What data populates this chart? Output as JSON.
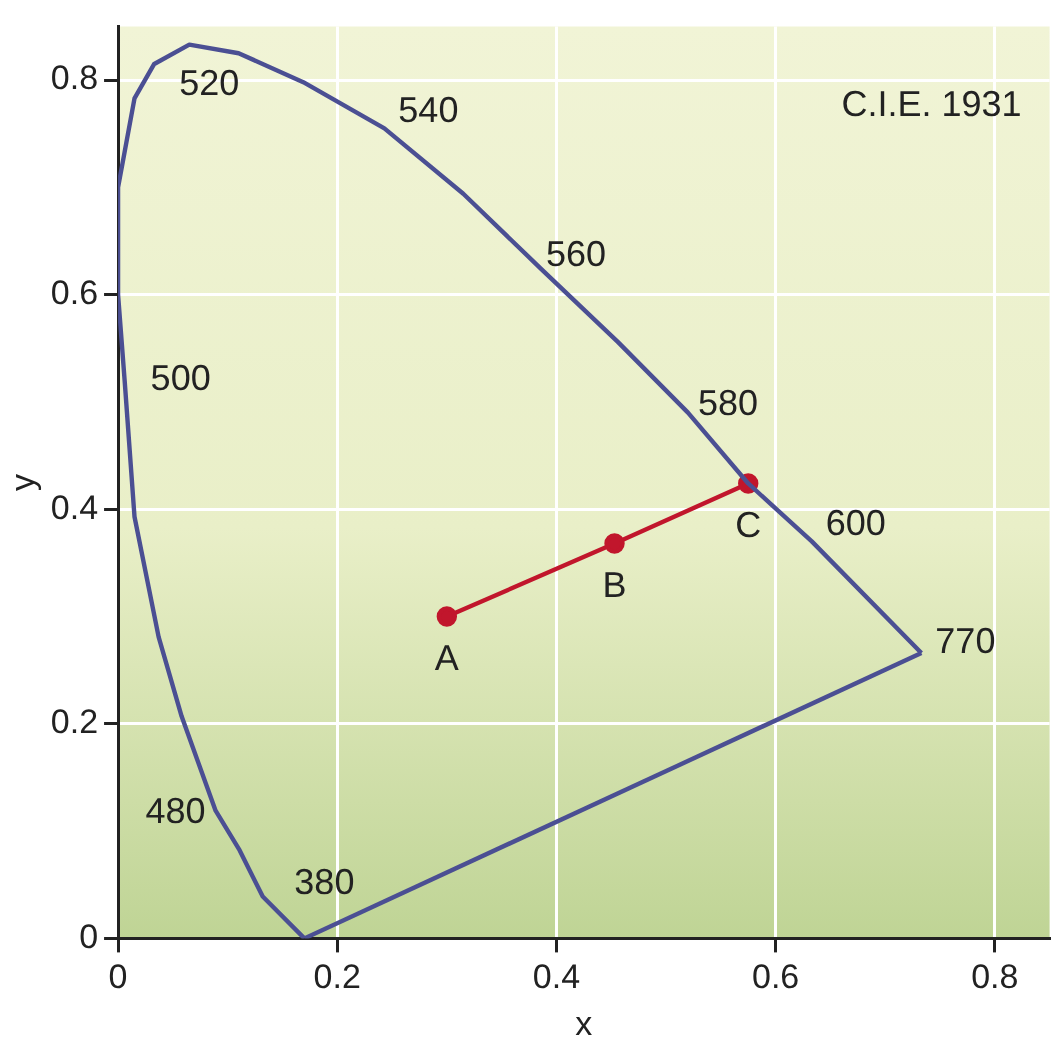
{
  "chart_data": {
    "type": "line",
    "xlabel": "x",
    "ylabel": "y",
    "xlim": [
      0,
      0.85
    ],
    "ylim": [
      0,
      0.85
    ],
    "xticks": [
      0,
      0.2,
      0.4,
      0.6,
      0.8
    ],
    "yticks": [
      0,
      0.2,
      0.4,
      0.6,
      0.8
    ],
    "grid": true,
    "legend": false,
    "series": [
      {
        "color": "#4b4f93",
        "marker": "none",
        "x": [
          0.17,
          0.132,
          0.111,
          0.089,
          0.058,
          0.037,
          0.015,
          0.006,
          0.0,
          0.0,
          0.006,
          0.015,
          0.033,
          0.065,
          0.11,
          0.169,
          0.243,
          0.315,
          0.385,
          0.456,
          0.52,
          0.575,
          0.633,
          0.733
        ],
        "values": [
          0.0,
          0.039,
          0.082,
          0.119,
          0.207,
          0.281,
          0.393,
          0.52,
          0.6,
          0.7,
          0.733,
          0.783,
          0.815,
          0.833,
          0.825,
          0.798,
          0.755,
          0.694,
          0.625,
          0.556,
          0.49,
          0.424,
          0.37,
          0.266
        ]
      },
      {
        "color": "#4b4f93",
        "marker": "none",
        "x": [
          0.17,
          0.733
        ],
        "values": [
          0.0,
          0.266
        ]
      },
      {
        "color": "#c1162c",
        "marker": "circle",
        "x": [
          0.3,
          0.453,
          0.575
        ],
        "values": [
          0.3,
          0.368,
          0.424
        ]
      }
    ],
    "annotations": [
      {
        "text": "520",
        "x": 0.065,
        "y": 0.833
      },
      {
        "text": "540",
        "x": 0.243,
        "y": 0.755
      },
      {
        "text": "560",
        "x": 0.385,
        "y": 0.625
      },
      {
        "text": "580",
        "x": 0.52,
        "y": 0.49
      },
      {
        "text": "600",
        "x": 0.633,
        "y": 0.37
      },
      {
        "text": "770",
        "x": 0.733,
        "y": 0.266
      },
      {
        "text": "500",
        "x": 0.006,
        "y": 0.52
      },
      {
        "text": "480",
        "x": 0.089,
        "y": 0.119
      },
      {
        "text": "380",
        "x": 0.17,
        "y": 0.0
      },
      {
        "text": "A",
        "x": 0.3,
        "y": 0.3
      },
      {
        "text": "B",
        "x": 0.453,
        "y": 0.368
      },
      {
        "text": "C",
        "x": 0.575,
        "y": 0.424
      },
      "C.I.E. 1931"
    ]
  }
}
